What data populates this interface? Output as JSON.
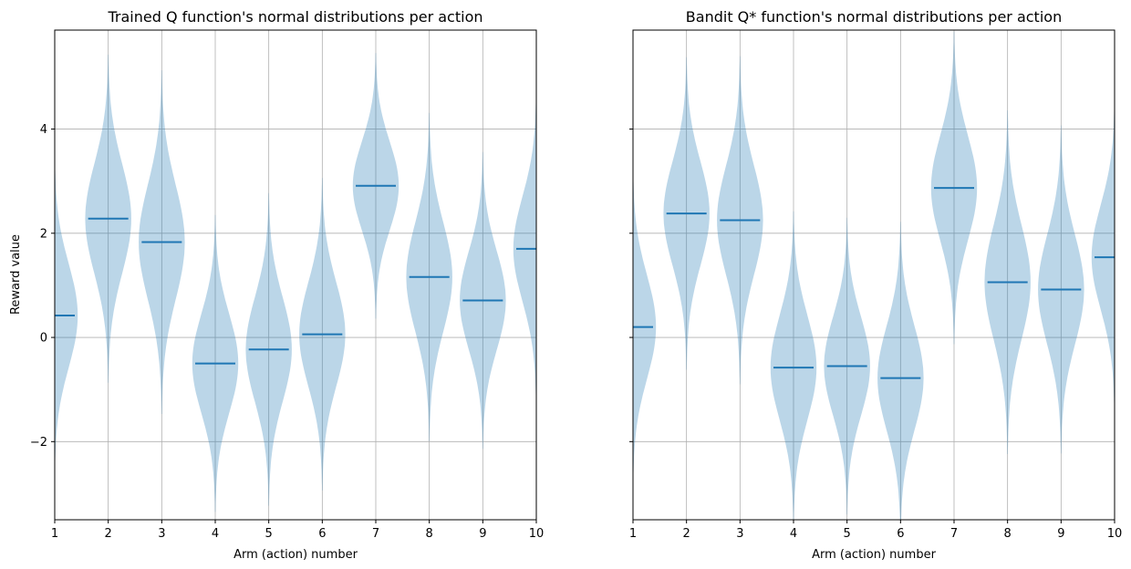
{
  "chart_data": [
    {
      "type": "violin",
      "title": "Trained Q function's normal distributions per action",
      "xlabel": "Arm (action) number",
      "ylabel": "Reward value",
      "xlim": [
        1,
        10
      ],
      "ylim": [
        -3.5,
        5.9
      ],
      "xticks": [
        "1",
        "2",
        "3",
        "4",
        "5",
        "6",
        "7",
        "8",
        "9",
        "10"
      ],
      "yticks": [
        "-2",
        "0",
        "2",
        "4"
      ],
      "grid": true,
      "color": "#1f77b4",
      "fill_color": "#1f77b4",
      "positions": [
        1,
        2,
        3,
        4,
        5,
        6,
        7,
        8,
        9,
        10
      ],
      "means": [
        0.42,
        2.28,
        1.83,
        -0.5,
        -0.23,
        0.06,
        2.91,
        1.16,
        0.71,
        1.7
      ],
      "stds": [
        1.0,
        1.05,
        1.1,
        0.95,
        1.0,
        1.0,
        0.85,
        1.05,
        0.95,
        1.0
      ]
    },
    {
      "type": "violin",
      "title": "Bandit Q* function's normal distributions per action",
      "xlabel": "Arm (action) number",
      "ylabel": "",
      "xlim": [
        1,
        10
      ],
      "ylim": [
        -3.5,
        5.9
      ],
      "xticks": [
        "1",
        "2",
        "3",
        "4",
        "5",
        "6",
        "7",
        "8",
        "9",
        "10"
      ],
      "yticks": [],
      "grid": true,
      "color": "#1f77b4",
      "fill_color": "#1f77b4",
      "positions": [
        1,
        2,
        3,
        4,
        5,
        6,
        7,
        8,
        9,
        10
      ],
      "means": [
        0.2,
        2.38,
        2.25,
        -0.58,
        -0.55,
        -0.78,
        2.87,
        1.06,
        0.92,
        1.54
      ],
      "stds": [
        1.0,
        1.0,
        1.05,
        1.0,
        0.95,
        1.0,
        1.0,
        1.1,
        1.05,
        1.0
      ]
    }
  ]
}
